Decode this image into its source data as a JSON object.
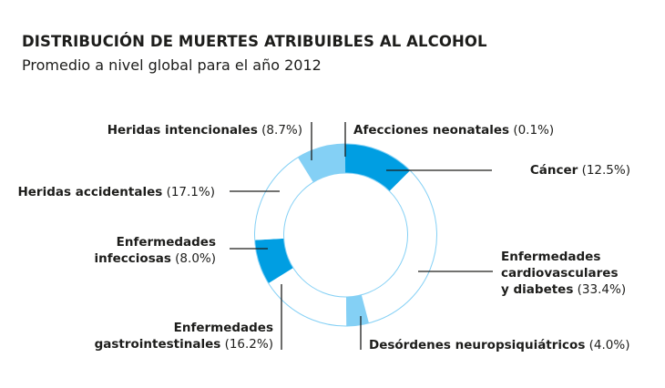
{
  "title": "DISTRIBUCIÓN DE MUERTES ATRIBUIBLES AL ALCOHOL",
  "subtitle": "Promedio a nivel global para el año 2012",
  "chart_data": {
    "type": "pie",
    "donut": true,
    "title": "DISTRIBUCIÓN DE MUERTES ATRIBUIBLES AL ALCOHOL",
    "subtitle": "Promedio a nivel global para el año 2012",
    "unit": "%",
    "slices": [
      {
        "label": "Cáncer",
        "value": 12.5,
        "pct_text": "(12.5%)",
        "color": "#009ee2"
      },
      {
        "label": "Enfermedades cardiovasculares y diabetes",
        "value": 33.4,
        "pct_text": "(33.4%)",
        "color": "#ffffff"
      },
      {
        "label": "Desórdenes neuropsiquiátricos",
        "value": 4.0,
        "pct_text": "(4.0%)",
        "color": "#84d0f5"
      },
      {
        "label": "Enfermedades gastrointestinales",
        "value": 16.2,
        "pct_text": "(16.2%)",
        "color": "#ffffff"
      },
      {
        "label": "Enfermedades infecciosas",
        "value": 8.0,
        "pct_text": "(8.0%)",
        "color": "#009ee2"
      },
      {
        "label": "Heridas accidentales",
        "value": 17.1,
        "pct_text": "(17.1%)",
        "color": "#ffffff"
      },
      {
        "label": "Heridas intencionales",
        "value": 8.7,
        "pct_text": "(8.7%)",
        "color": "#84d0f5"
      },
      {
        "label": "Afecciones neonatales",
        "value": 0.1,
        "pct_text": "(0.1%)",
        "color": "#009ee2"
      }
    ],
    "ring_outline_color": "#84d0f5",
    "label_lines": [
      [
        "Cáncer"
      ],
      [
        "Enfermedades",
        "cardiovasculares",
        "y diabetes"
      ],
      [
        "Desórdenes neuropsiquiátricos"
      ],
      [
        "Enfermedades",
        "gastrointestinales"
      ],
      [
        "Enfermedades",
        "infecciosas"
      ],
      [
        "Heridas accidentales"
      ],
      [
        "Heridas intencionales"
      ],
      [
        "Afecciones neonatales"
      ]
    ]
  }
}
